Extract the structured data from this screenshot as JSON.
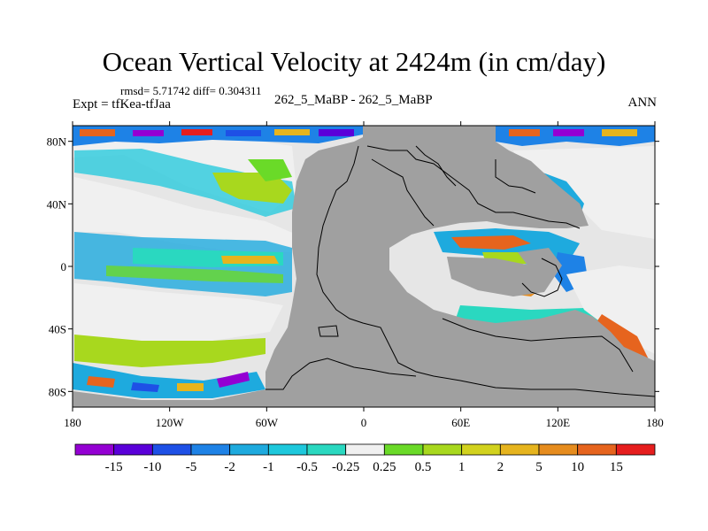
{
  "title": "Ocean Vertical Velocity at 2424m (in cm/day)",
  "stats": "rmsd= 5.71742 diff= 0.304311",
  "expt": "Expt = tfKea-tfJaa",
  "center_label": "262_5_MaBP - 262_5_MaBP",
  "season": "ANN",
  "colors": {
    "land": "#a0a0a0",
    "background_field": "#e6e6e6",
    "coast": "#000000"
  },
  "map": {
    "lat_ticks": [
      {
        "label": "80N",
        "lat": 80
      },
      {
        "label": "40N",
        "lat": 40
      },
      {
        "label": "0",
        "lat": 0
      },
      {
        "label": "40S",
        "lat": -40
      },
      {
        "label": "80S",
        "lat": -80
      }
    ],
    "lon_ticks": [
      {
        "label": "180",
        "lon": -180
      },
      {
        "label": "120W",
        "lon": -120
      },
      {
        "label": "60W",
        "lon": -60
      },
      {
        "label": "0",
        "lon": 0
      },
      {
        "label": "60E",
        "lon": 60
      },
      {
        "label": "120E",
        "lon": 120
      },
      {
        "label": "180",
        "lon": 180
      }
    ]
  },
  "colorbar": {
    "colors": [
      "#9400d3",
      "#5a00d9",
      "#1e50e6",
      "#1e82e6",
      "#1eaade",
      "#1ec8dc",
      "#2ad8c0",
      "#f0f0f0",
      "#6ada28",
      "#a8d81e",
      "#d2d21e",
      "#e6b41e",
      "#e68c1e",
      "#e6641e",
      "#e61e1e"
    ],
    "labels": [
      "-15",
      "-10",
      "-5",
      "-2",
      "-1",
      "-0.5",
      "-0.25",
      "0.25",
      "0.5",
      "1",
      "2",
      "5",
      "10",
      "15"
    ]
  }
}
